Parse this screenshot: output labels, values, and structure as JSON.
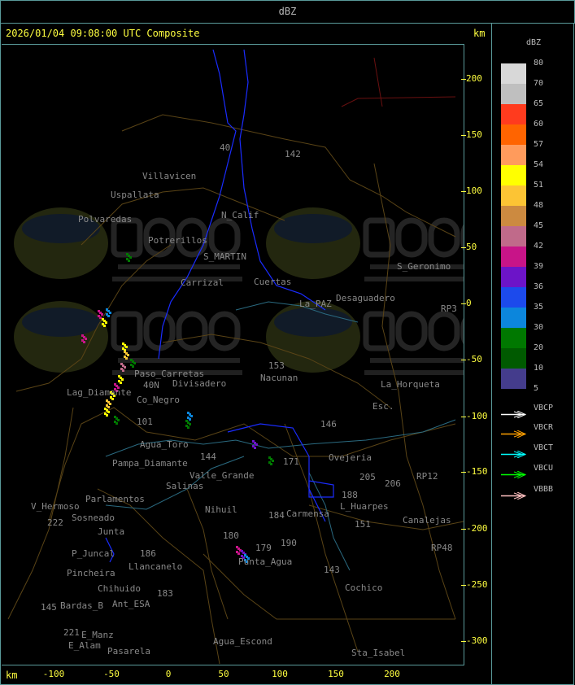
{
  "header": {
    "title": "dBZ"
  },
  "panel": {
    "title": "2026/01/04 09:08:00 UTC Composite",
    "unit_top": "km",
    "unit_bottom": "km"
  },
  "axes": {
    "y_ticks": [
      "200",
      "150",
      "100",
      "50",
      "0",
      "-50",
      "-100",
      "-150",
      "-200",
      "-250",
      "-300"
    ],
    "x_ticks": [
      "-100",
      "-50",
      "0",
      "50",
      "100",
      "150",
      "200"
    ]
  },
  "legend": {
    "title": "dBZ",
    "labels": [
      "80",
      "70",
      "65",
      "60",
      "57",
      "54",
      "51",
      "48",
      "45",
      "42",
      "39",
      "36",
      "35",
      "30",
      "20",
      "10",
      "5"
    ],
    "colors": [
      "#d8d8d8",
      "#bfbfbf",
      "#ff3b1e",
      "#ff6400",
      "#ff9b5c",
      "#ffff00",
      "#fcc434",
      "#cc8a40",
      "#c06a8a",
      "#c81488",
      "#6c14c8",
      "#1c4aec",
      "#0c86dc",
      "#007800",
      "#005a00",
      "#443c8c"
    ],
    "arrows": [
      {
        "label": "VBCP",
        "color": "#ffffff"
      },
      {
        "label": "VBCR",
        "color": "#ffa000"
      },
      {
        "label": "VBCT",
        "color": "#00ffff"
      },
      {
        "label": "VBCU",
        "color": "#00ff00"
      },
      {
        "label": "VBBB",
        "color": "#ffc0c0"
      }
    ]
  },
  "watermark": {
    "brand": "DACC",
    "line1": "Dirección de Agricultura",
    "line2": "y Contingencias Climáticas",
    "url": "www.contingencias.mendoza.gov.ar"
  },
  "places": [
    "Uspallata",
    "Villavicen",
    "Polvaredas",
    "Potrerillos",
    "N_Calif",
    "S_MARTIN",
    "Carrizal",
    "Cuertas",
    "Desaguadero",
    "La_PAZ",
    "Paso_Carretas",
    "Lag_Diamante",
    "Co_Negro",
    "Divisadero",
    "Nacunan",
    "La_Horqueta",
    "Esc.",
    "S_Geronimo",
    "Agua_Toro",
    "Pampa_Diamante",
    "Valle_Grande",
    "Salinas",
    "Parlamentos",
    "Sosneado",
    "V_Hermoso",
    "Junta",
    "P_Juncal",
    "Pincheira",
    "Llancanelo",
    "Chihuido",
    "Ant_ESA",
    "Bardas_B",
    "E_Manz",
    "E_Alam",
    "Pasarela",
    "Agua_Escond",
    "Punta_Agua",
    "Carmensa",
    "L_Huarpes",
    "Ovejeria",
    "Cochico",
    "Sta_Isabel",
    "Canalejas",
    "Nihuil",
    "RP3",
    "RP12",
    "RP48",
    "142",
    "153",
    "146",
    "205",
    "206",
    "188",
    "151",
    "184",
    "180",
    "179",
    "190",
    "143",
    "183",
    "186",
    "145",
    "221",
    "222",
    "40",
    "101",
    "144",
    "171",
    "40N"
  ]
}
